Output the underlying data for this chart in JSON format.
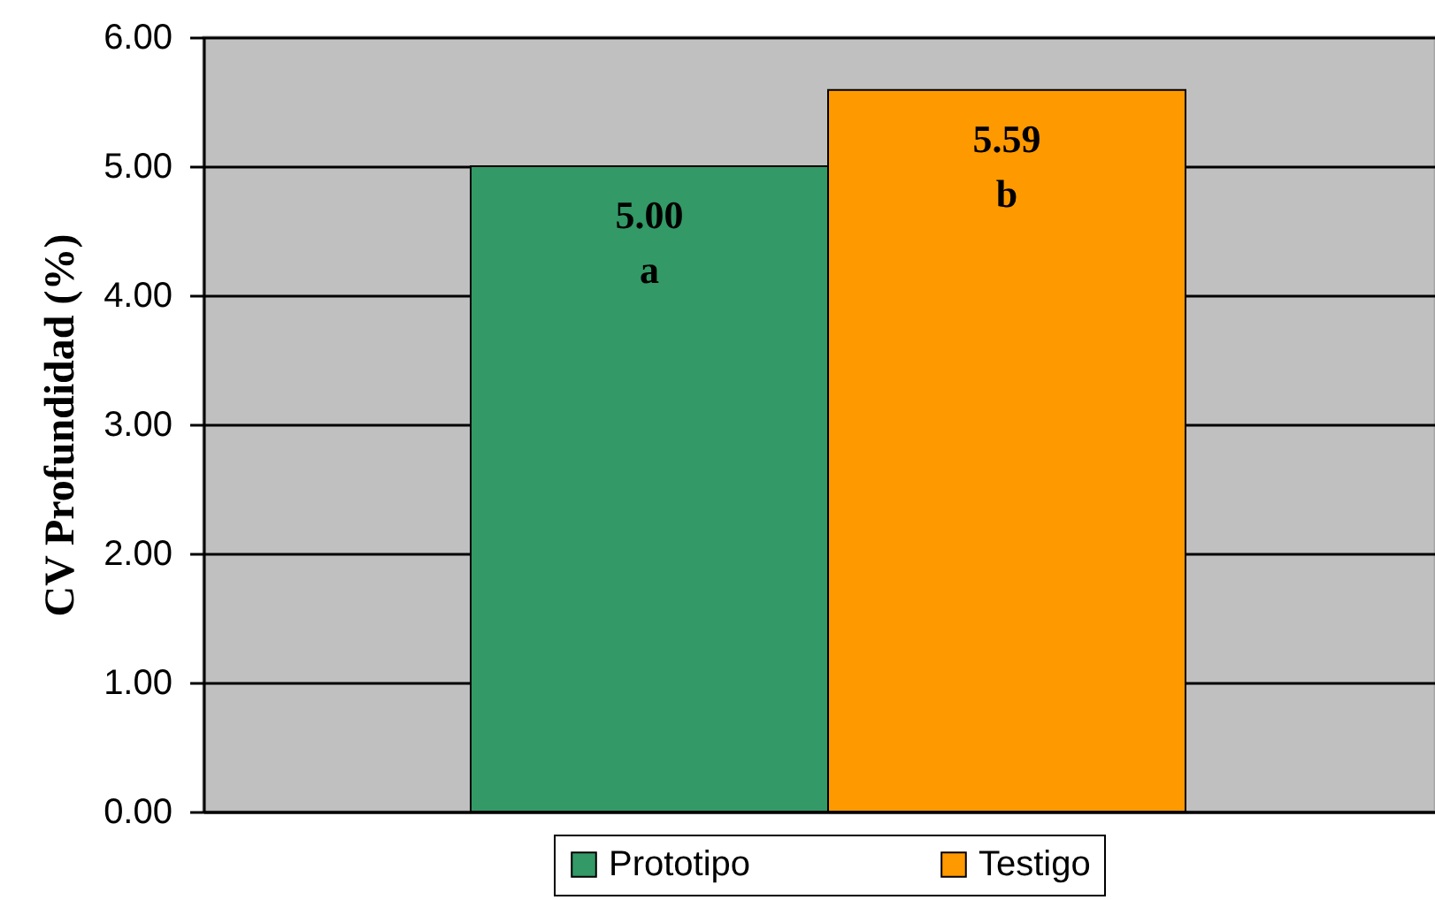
{
  "chart_data": {
    "type": "bar",
    "ylabel": "CV Profundidad (%)",
    "categories": [
      null
    ],
    "series": [
      {
        "name": "Prototipo",
        "color": "#339966",
        "values": [
          5.0
        ],
        "value_labels": [
          "5.00\na"
        ]
      },
      {
        "name": "Testigo",
        "color": "#ff9900",
        "values": [
          5.59
        ],
        "value_labels": [
          "5.59\nb"
        ]
      }
    ],
    "ylim": [
      0,
      6
    ],
    "yticks": [
      {
        "value": 0,
        "label": "0.00"
      },
      {
        "value": 1,
        "label": "1.00"
      },
      {
        "value": 2,
        "label": "2.00"
      },
      {
        "value": 3,
        "label": "3.00"
      },
      {
        "value": 4,
        "label": "4.00"
      },
      {
        "value": 5,
        "label": "5.00"
      },
      {
        "value": 6,
        "label": "6.00"
      }
    ],
    "grid": "y",
    "legend": "bottom"
  }
}
